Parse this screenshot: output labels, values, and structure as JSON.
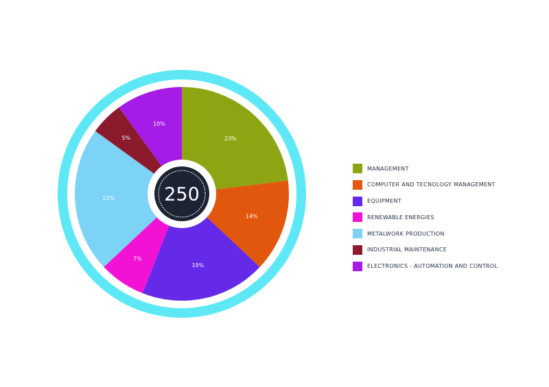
{
  "chart_data": {
    "type": "pie",
    "center_total": "250",
    "slices": [
      {
        "name": "MANAGEMENT",
        "value": 23,
        "label": "23%",
        "color": "#8ea513"
      },
      {
        "name": "COMPUTER AND TECNOLOGY MANAGEMENT",
        "value": 14,
        "label": "14%",
        "color": "#e0570d"
      },
      {
        "name": "EQUIPMENT",
        "value": 19,
        "label": "19%",
        "color": "#6529e8"
      },
      {
        "name": "RENEWABLE ENERGIES",
        "value": 7,
        "label": "7%",
        "color": "#f212d6"
      },
      {
        "name": "METALWORK PRODUCTION",
        "value": 22,
        "label": "22%",
        "color": "#7dd3f5"
      },
      {
        "name": "INDUSTRIAL MAINTENANCE",
        "value": 5,
        "label": "5%",
        "color": "#8b1a2c"
      },
      {
        "name": "ELECTRONICS - AUTOMATION AND CONTROL",
        "value": 10,
        "label": "10%",
        "color": "#a51ce8"
      }
    ],
    "legend_position": "right",
    "ring_color": "#5ee8f5",
    "center_color": "#1c2433"
  }
}
